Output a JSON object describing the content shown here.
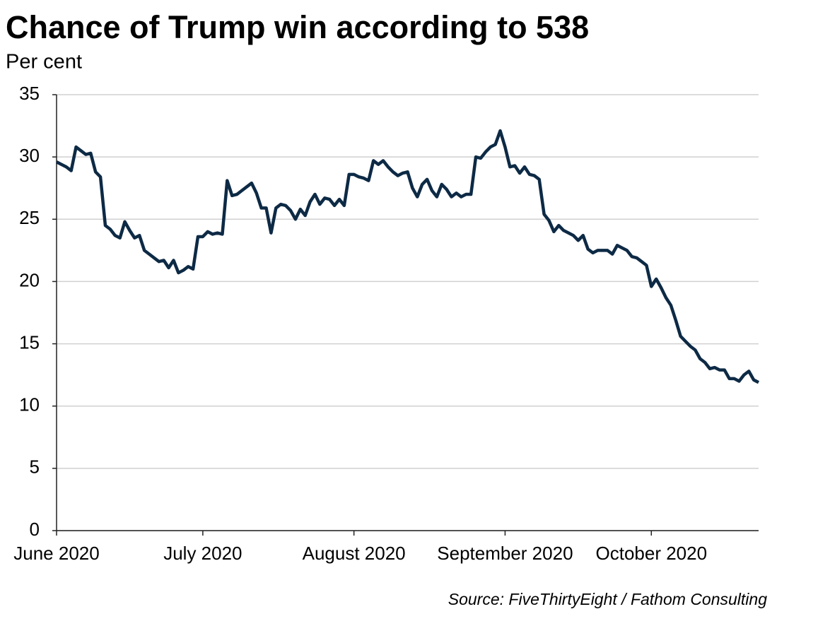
{
  "chart_data": {
    "type": "line",
    "title": "Chance of Trump win according to 538",
    "subtitle": "Per cent",
    "source": "Source: FiveThirtyEight / Fathom Consulting",
    "categories": [
      "June 2020",
      null,
      null,
      null,
      null,
      null,
      null,
      null,
      null,
      null,
      null,
      null,
      null,
      null,
      null,
      null,
      null,
      null,
      null,
      null,
      null,
      null,
      null,
      null,
      null,
      null,
      null,
      null,
      null,
      null,
      "July 2020",
      null,
      null,
      null,
      null,
      null,
      null,
      null,
      null,
      null,
      null,
      null,
      null,
      null,
      null,
      null,
      null,
      null,
      null,
      null,
      null,
      null,
      null,
      null,
      null,
      null,
      null,
      null,
      null,
      null,
      null,
      "August 2020",
      null,
      null,
      null,
      null,
      null,
      null,
      null,
      null,
      null,
      null,
      null,
      null,
      null,
      null,
      null,
      null,
      null,
      null,
      null,
      null,
      null,
      null,
      null,
      null,
      null,
      null,
      null,
      null,
      null,
      null,
      "September 2020",
      null,
      null,
      null,
      null,
      null,
      null,
      null,
      null,
      null,
      null,
      null,
      null,
      null,
      null,
      null,
      null,
      null,
      null,
      null,
      null,
      null,
      null,
      null,
      null,
      null,
      null,
      null,
      null,
      null,
      "October 2020",
      null,
      null,
      null,
      null,
      null,
      null,
      null,
      null,
      null,
      null,
      null,
      null,
      null,
      null,
      null,
      null,
      null,
      null,
      null,
      null,
      null,
      null
    ],
    "values": [
      29.6,
      29.4,
      29.2,
      28.9,
      30.8,
      30.5,
      30.2,
      30.3,
      28.8,
      28.4,
      24.5,
      24.2,
      23.7,
      23.5,
      24.8,
      24.1,
      23.5,
      23.7,
      22.5,
      22.2,
      21.9,
      21.6,
      21.7,
      21.1,
      21.7,
      20.7,
      20.9,
      21.2,
      21.0,
      23.6,
      23.6,
      24.0,
      23.8,
      23.9,
      23.8,
      28.1,
      26.9,
      27.0,
      27.3,
      27.6,
      27.9,
      27.1,
      25.9,
      25.9,
      23.9,
      25.9,
      26.2,
      26.1,
      25.7,
      25.0,
      25.8,
      25.3,
      26.4,
      27.0,
      26.2,
      26.7,
      26.6,
      26.1,
      26.6,
      26.1,
      28.6,
      28.6,
      28.4,
      28.3,
      28.1,
      29.7,
      29.4,
      29.7,
      29.2,
      28.8,
      28.5,
      28.7,
      28.8,
      27.5,
      26.8,
      27.8,
      28.2,
      27.3,
      26.8,
      27.8,
      27.4,
      26.8,
      27.1,
      26.8,
      27.0,
      27.0,
      30.0,
      29.9,
      30.4,
      30.8,
      31.0,
      32.1,
      30.8,
      29.2,
      29.3,
      28.7,
      29.2,
      28.6,
      28.5,
      28.2,
      25.4,
      24.9,
      24.0,
      24.5,
      24.1,
      23.9,
      23.7,
      23.3,
      23.7,
      22.6,
      22.3,
      22.5,
      22.5,
      22.5,
      22.2,
      22.9,
      22.7,
      22.5,
      22.0,
      21.9,
      21.6,
      21.3,
      19.6,
      20.2,
      19.5,
      18.7,
      18.1,
      16.9,
      15.6,
      15.2,
      14.8,
      14.5,
      13.8,
      13.5,
      13.0,
      13.1,
      12.9,
      12.9,
      12.2,
      12.2,
      12.0,
      12.5,
      12.8,
      12.1,
      11.9
    ],
    "color": "#0d2a45",
    "ylim": [
      0,
      35
    ],
    "yticks": [
      0,
      5,
      10,
      15,
      20,
      25,
      30,
      35
    ],
    "grid": true
  }
}
